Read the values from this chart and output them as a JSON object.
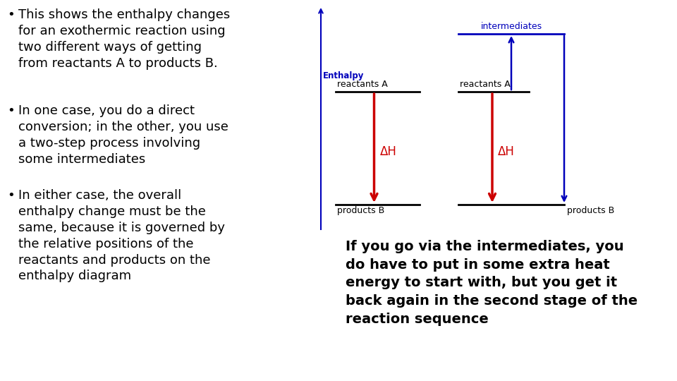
{
  "bg_color": "#ffffff",
  "text_color": "#000000",
  "blue_color": "#0000bb",
  "red_color": "#cc0000",
  "bullet_points": [
    "This shows the enthalpy changes\nfor an exothermic reaction using\ntwo different ways of getting\nfrom reactants A to products B.",
    "In one case, you do a direct\nconversion; in the other, you use\na two-step process involving\nsome intermediates",
    "In either case, the overall\nenthalpy change must be the\nsame, because it is governed by\nthe relative positions of the\nreactants and products on the\nenthalpy diagram"
  ],
  "right_text": "If you go via the intermediates, you\ndo have to put in some extra heat\nenergy to start with, but you get it\nback again in the second stage of the\nreaction sequence",
  "enthalpy_label": "Enthalpy",
  "diagram1": {
    "reactants_label": "reactants A",
    "products_label": "products B",
    "dH_label": "ΔH"
  },
  "diagram2": {
    "reactants_label": "reactants A",
    "products_label": "products B",
    "intermediates_label": "intermediates",
    "dH_label": "ΔH"
  }
}
